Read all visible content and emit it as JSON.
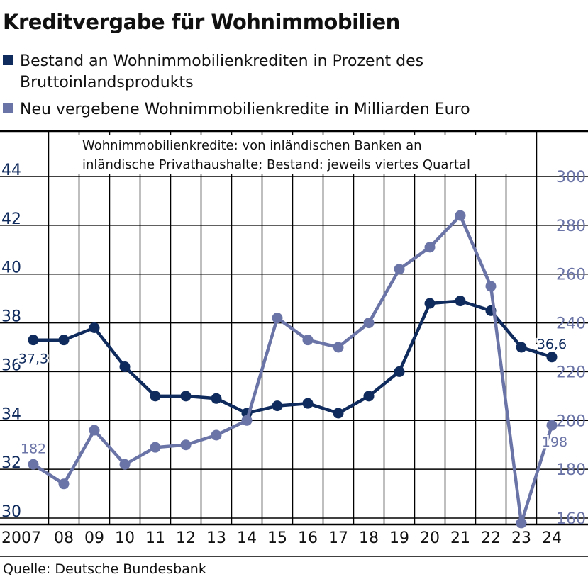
{
  "title": "Kreditvergabe für Wohnimmobilien",
  "legend": [
    {
      "label_line1": "Bestand an Wohnimmobilienkrediten in Prozent des",
      "label_line2": "Bruttoinlandsprodukts",
      "color": "#0f2a5c"
    },
    {
      "label": "Neu vergebene Wohnimmobilienkredite in Milliarden Euro",
      "color": "#6b74a6"
    }
  ],
  "note_line1": "Wohnimmobilienkredite: von inländischen Banken an",
  "note_line2": "inländische Privathaushalte; Bestand: jeweils viertes Quartal",
  "source": "Quelle: Deutsche Bundesbank",
  "chart_data": {
    "type": "line",
    "categories": [
      "2007",
      "08",
      "09",
      "10",
      "11",
      "12",
      "13",
      "14",
      "15",
      "16",
      "17",
      "18",
      "19",
      "20",
      "21",
      "22",
      "23",
      "24"
    ],
    "left_axis": {
      "ylim": [
        30,
        44
      ],
      "ticks": [
        "30",
        "32",
        "34",
        "36",
        "38",
        "40",
        "42",
        "44"
      ]
    },
    "right_axis": {
      "ylim": [
        160,
        300
      ],
      "ticks": [
        "160",
        "180",
        "200",
        "220",
        "240",
        "260",
        "280",
        "300"
      ]
    },
    "series": [
      {
        "axis": "left",
        "color": "#0f2a5c",
        "values": [
          37.3,
          37.3,
          37.8,
          36.2,
          35.0,
          35.0,
          34.9,
          34.3,
          34.6,
          34.7,
          34.3,
          35.0,
          36.0,
          38.8,
          38.9,
          38.5,
          37.0,
          36.6
        ]
      },
      {
        "axis": "right",
        "color": "#6b74a6",
        "values": [
          182,
          174,
          196,
          182,
          189,
          190,
          194,
          200,
          242,
          233,
          230,
          240,
          262,
          271,
          284,
          255,
          158,
          198
        ]
      }
    ],
    "annotations": [
      {
        "series": 0,
        "index": 0,
        "text": "37,3"
      },
      {
        "series": 0,
        "index": 17,
        "text": "36,6"
      },
      {
        "series": 1,
        "index": 0,
        "text": "182"
      },
      {
        "series": 1,
        "index": 17,
        "text": "198"
      }
    ],
    "grid": true
  }
}
